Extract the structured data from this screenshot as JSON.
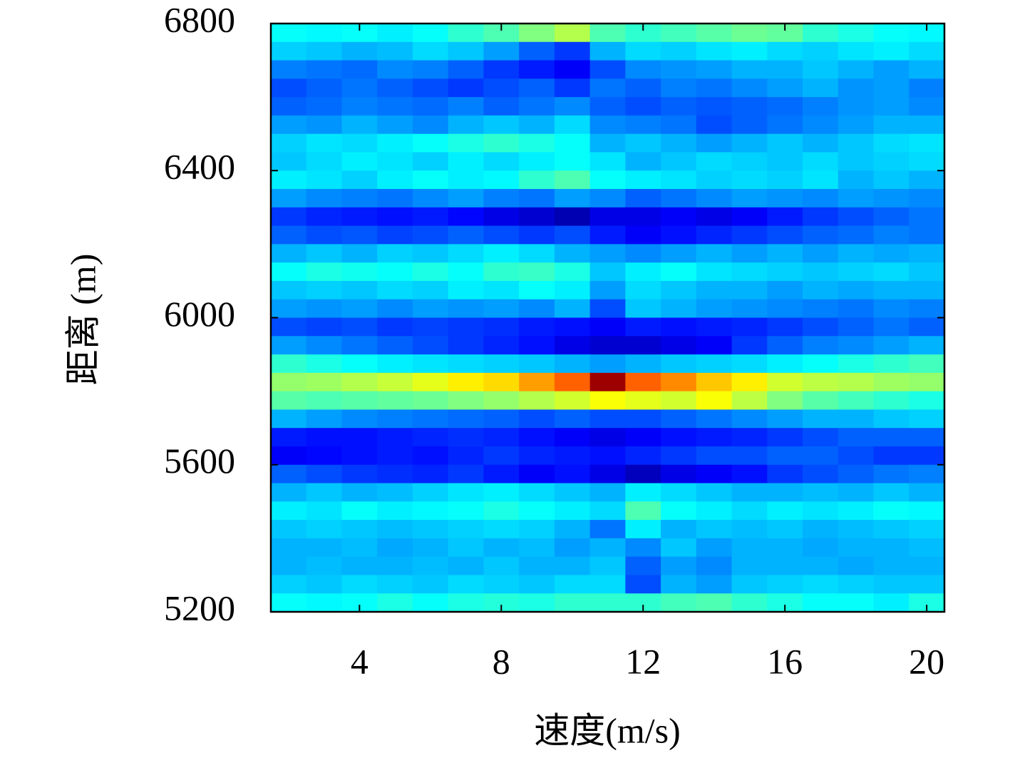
{
  "chart_data": {
    "type": "heatmap",
    "xlabel": "速度(m/s)",
    "ylabel": "距离 (m)",
    "colormap": "jet",
    "clim": [
      0,
      1
    ],
    "xlim": [
      1.5,
      20.5
    ],
    "ylim": [
      5200,
      6800
    ],
    "xticks": [
      4,
      8,
      12,
      16,
      20
    ],
    "yticks": [
      5200,
      5600,
      6000,
      6400,
      6800
    ],
    "x": [
      2,
      3,
      4,
      5,
      6,
      7,
      8,
      9,
      10,
      11,
      12,
      13,
      14,
      15,
      16,
      17,
      18,
      19,
      20
    ],
    "y": [
      6775,
      6725,
      6675,
      6625,
      6575,
      6525,
      6475,
      6425,
      6375,
      6325,
      6275,
      6225,
      6175,
      6125,
      6075,
      6025,
      5975,
      5925,
      5875,
      5825,
      5775,
      5725,
      5675,
      5625,
      5575,
      5525,
      5475,
      5425,
      5375,
      5325,
      5275,
      5225
    ],
    "z": [
      [
        0.38,
        0.37,
        0.38,
        0.36,
        0.38,
        0.42,
        0.45,
        0.5,
        0.55,
        0.45,
        0.42,
        0.44,
        0.46,
        0.48,
        0.47,
        0.42,
        0.4,
        0.38,
        0.37
      ],
      [
        0.33,
        0.32,
        0.3,
        0.31,
        0.34,
        0.32,
        0.28,
        0.22,
        0.18,
        0.3,
        0.34,
        0.33,
        0.35,
        0.36,
        0.34,
        0.33,
        0.35,
        0.36,
        0.34
      ],
      [
        0.25,
        0.24,
        0.23,
        0.26,
        0.25,
        0.22,
        0.18,
        0.15,
        0.12,
        0.2,
        0.26,
        0.27,
        0.28,
        0.3,
        0.3,
        0.32,
        0.3,
        0.28,
        0.3
      ],
      [
        0.2,
        0.22,
        0.24,
        0.22,
        0.2,
        0.18,
        0.2,
        0.22,
        0.18,
        0.24,
        0.22,
        0.25,
        0.24,
        0.26,
        0.28,
        0.3,
        0.27,
        0.28,
        0.25
      ],
      [
        0.22,
        0.23,
        0.25,
        0.24,
        0.23,
        0.25,
        0.22,
        0.24,
        0.26,
        0.22,
        0.2,
        0.22,
        0.21,
        0.22,
        0.23,
        0.25,
        0.27,
        0.28,
        0.26
      ],
      [
        0.28,
        0.27,
        0.3,
        0.28,
        0.26,
        0.3,
        0.32,
        0.3,
        0.34,
        0.26,
        0.25,
        0.24,
        0.2,
        0.22,
        0.24,
        0.26,
        0.28,
        0.3,
        0.3
      ],
      [
        0.33,
        0.35,
        0.34,
        0.36,
        0.38,
        0.4,
        0.42,
        0.4,
        0.38,
        0.3,
        0.32,
        0.3,
        0.28,
        0.3,
        0.32,
        0.3,
        0.32,
        0.34,
        0.35
      ],
      [
        0.32,
        0.34,
        0.36,
        0.35,
        0.33,
        0.36,
        0.34,
        0.36,
        0.38,
        0.35,
        0.3,
        0.32,
        0.34,
        0.33,
        0.32,
        0.34,
        0.32,
        0.33,
        0.34
      ],
      [
        0.36,
        0.35,
        0.33,
        0.36,
        0.38,
        0.36,
        0.37,
        0.42,
        0.45,
        0.38,
        0.36,
        0.35,
        0.33,
        0.34,
        0.33,
        0.35,
        0.3,
        0.32,
        0.3
      ],
      [
        0.28,
        0.26,
        0.25,
        0.24,
        0.26,
        0.28,
        0.25,
        0.24,
        0.28,
        0.26,
        0.22,
        0.24,
        0.26,
        0.28,
        0.27,
        0.26,
        0.28,
        0.27,
        0.26
      ],
      [
        0.18,
        0.16,
        0.15,
        0.14,
        0.15,
        0.13,
        0.1,
        0.08,
        0.05,
        0.1,
        0.1,
        0.12,
        0.1,
        0.12,
        0.15,
        0.18,
        0.2,
        0.22,
        0.24
      ],
      [
        0.22,
        0.2,
        0.21,
        0.19,
        0.2,
        0.22,
        0.2,
        0.18,
        0.2,
        0.15,
        0.12,
        0.14,
        0.16,
        0.18,
        0.2,
        0.22,
        0.23,
        0.25,
        0.24
      ],
      [
        0.3,
        0.32,
        0.3,
        0.33,
        0.32,
        0.34,
        0.36,
        0.34,
        0.3,
        0.28,
        0.26,
        0.28,
        0.3,
        0.28,
        0.3,
        0.28,
        0.3,
        0.29,
        0.3
      ],
      [
        0.38,
        0.4,
        0.39,
        0.38,
        0.4,
        0.38,
        0.42,
        0.43,
        0.4,
        0.32,
        0.36,
        0.38,
        0.35,
        0.34,
        0.33,
        0.32,
        0.33,
        0.34,
        0.32
      ],
      [
        0.32,
        0.33,
        0.32,
        0.34,
        0.33,
        0.36,
        0.35,
        0.38,
        0.36,
        0.28,
        0.34,
        0.32,
        0.3,
        0.3,
        0.28,
        0.3,
        0.29,
        0.3,
        0.3
      ],
      [
        0.28,
        0.27,
        0.28,
        0.26,
        0.28,
        0.27,
        0.28,
        0.26,
        0.3,
        0.2,
        0.32,
        0.3,
        0.28,
        0.27,
        0.26,
        0.25,
        0.24,
        0.26,
        0.25
      ],
      [
        0.2,
        0.19,
        0.2,
        0.18,
        0.19,
        0.18,
        0.17,
        0.15,
        0.14,
        0.12,
        0.15,
        0.14,
        0.15,
        0.16,
        0.18,
        0.2,
        0.22,
        0.24,
        0.22
      ],
      [
        0.28,
        0.26,
        0.24,
        0.22,
        0.2,
        0.18,
        0.16,
        0.14,
        0.1,
        0.08,
        0.08,
        0.1,
        0.12,
        0.18,
        0.22,
        0.25,
        0.26,
        0.28,
        0.3
      ],
      [
        0.42,
        0.4,
        0.38,
        0.36,
        0.35,
        0.34,
        0.33,
        0.32,
        0.3,
        0.28,
        0.3,
        0.32,
        0.33,
        0.34,
        0.36,
        0.38,
        0.4,
        0.42,
        0.44
      ],
      [
        0.52,
        0.53,
        0.55,
        0.57,
        0.6,
        0.64,
        0.66,
        0.72,
        0.78,
        0.97,
        0.78,
        0.74,
        0.68,
        0.64,
        0.58,
        0.56,
        0.55,
        0.53,
        0.52
      ],
      [
        0.46,
        0.45,
        0.46,
        0.47,
        0.48,
        0.5,
        0.52,
        0.55,
        0.58,
        0.62,
        0.6,
        0.58,
        0.62,
        0.56,
        0.5,
        0.46,
        0.44,
        0.42,
        0.4
      ],
      [
        0.3,
        0.28,
        0.26,
        0.25,
        0.24,
        0.23,
        0.22,
        0.2,
        0.22,
        0.2,
        0.2,
        0.22,
        0.24,
        0.26,
        0.28,
        0.3,
        0.3,
        0.32,
        0.33
      ],
      [
        0.15,
        0.14,
        0.14,
        0.15,
        0.16,
        0.17,
        0.16,
        0.14,
        0.12,
        0.1,
        0.12,
        0.14,
        0.15,
        0.16,
        0.18,
        0.2,
        0.22,
        0.22,
        0.22
      ],
      [
        0.12,
        0.13,
        0.14,
        0.15,
        0.14,
        0.16,
        0.18,
        0.16,
        0.15,
        0.14,
        0.16,
        0.18,
        0.2,
        0.2,
        0.22,
        0.22,
        0.2,
        0.18,
        0.18
      ],
      [
        0.22,
        0.2,
        0.18,
        0.17,
        0.16,
        0.18,
        0.15,
        0.12,
        0.14,
        0.1,
        0.06,
        0.1,
        0.12,
        0.14,
        0.18,
        0.2,
        0.22,
        0.24,
        0.25
      ],
      [
        0.3,
        0.32,
        0.3,
        0.31,
        0.33,
        0.35,
        0.36,
        0.34,
        0.32,
        0.3,
        0.36,
        0.34,
        0.32,
        0.3,
        0.3,
        0.31,
        0.3,
        0.32,
        0.3
      ],
      [
        0.36,
        0.35,
        0.38,
        0.36,
        0.37,
        0.38,
        0.4,
        0.38,
        0.36,
        0.34,
        0.45,
        0.38,
        0.36,
        0.34,
        0.36,
        0.35,
        0.36,
        0.38,
        0.37
      ],
      [
        0.32,
        0.33,
        0.32,
        0.31,
        0.32,
        0.33,
        0.34,
        0.33,
        0.3,
        0.24,
        0.36,
        0.3,
        0.32,
        0.31,
        0.32,
        0.3,
        0.31,
        0.32,
        0.33
      ],
      [
        0.3,
        0.3,
        0.31,
        0.29,
        0.3,
        0.32,
        0.3,
        0.31,
        0.28,
        0.3,
        0.26,
        0.32,
        0.28,
        0.3,
        0.3,
        0.29,
        0.3,
        0.3,
        0.31
      ],
      [
        0.3,
        0.31,
        0.3,
        0.3,
        0.31,
        0.3,
        0.32,
        0.3,
        0.3,
        0.32,
        0.22,
        0.28,
        0.26,
        0.3,
        0.3,
        0.3,
        0.29,
        0.3,
        0.3
      ],
      [
        0.33,
        0.32,
        0.34,
        0.33,
        0.32,
        0.34,
        0.33,
        0.32,
        0.34,
        0.34,
        0.2,
        0.3,
        0.28,
        0.32,
        0.33,
        0.34,
        0.33,
        0.32,
        0.32
      ],
      [
        0.38,
        0.37,
        0.38,
        0.4,
        0.38,
        0.4,
        0.41,
        0.4,
        0.42,
        0.42,
        0.42,
        0.44,
        0.45,
        0.42,
        0.4,
        0.38,
        0.38,
        0.36,
        0.4
      ]
    ]
  }
}
